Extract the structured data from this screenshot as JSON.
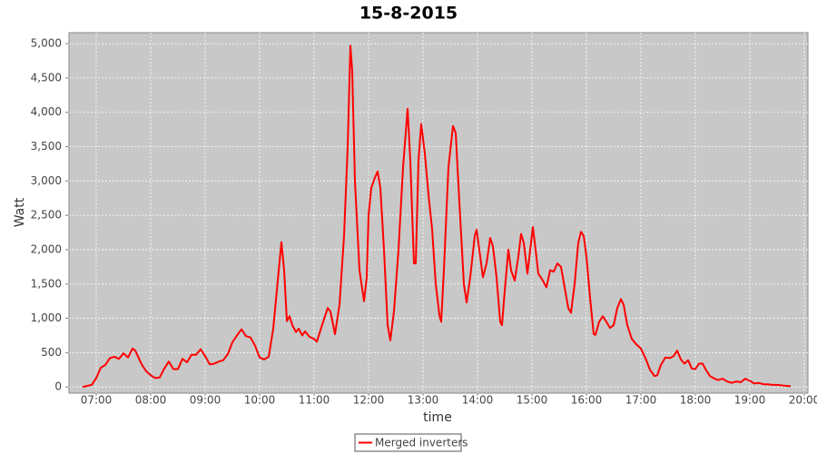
{
  "chart_data": {
    "type": "line",
    "title": "15-8-2015",
    "x_label": "time",
    "y_label": "Watt",
    "xlim": [
      "06:30",
      "20:04"
    ],
    "xticks": [
      "07:00",
      "08:00",
      "09:00",
      "10:00",
      "11:00",
      "12:00",
      "13:00",
      "14:00",
      "15:00",
      "16:00",
      "17:00",
      "18:00",
      "19:00",
      "20:00"
    ],
    "ylim": [
      -90,
      5160
    ],
    "yticks": [
      0,
      500,
      {
        "value": 1000,
        "label": "1,000"
      },
      {
        "value": 1500,
        "label": "1,500"
      },
      {
        "value": 2000,
        "label": "2,000"
      },
      {
        "value": 2500,
        "label": "2,500"
      },
      {
        "value": 3000,
        "label": "3,000"
      },
      {
        "value": 3500,
        "label": "3,500"
      },
      {
        "value": 4000,
        "label": "4,000"
      },
      {
        "value": 4500,
        "label": "4,500"
      },
      {
        "value": 5000,
        "label": "5,000"
      }
    ],
    "grid": true,
    "x": [
      "06:45",
      "06:55",
      "07:00",
      "07:05",
      "07:10",
      "07:15",
      "07:20",
      "07:25",
      "07:30",
      "07:35",
      "07:40",
      "07:43",
      "07:50",
      "07:55",
      "08:00",
      "08:05",
      "08:10",
      "08:15",
      "08:20",
      "08:25",
      "08:30",
      "08:35",
      "08:40",
      "08:45",
      "08:50",
      "08:55",
      "09:00",
      "09:05",
      "09:10",
      "09:15",
      "09:20",
      "09:25",
      "09:30",
      "09:35",
      "09:40",
      "09:45",
      "09:50",
      "09:55",
      "10:00",
      "10:05",
      "10:10",
      "10:15",
      "10:20",
      "10:24",
      "10:27",
      "10:30",
      "10:33",
      "10:36",
      "10:40",
      "10:43",
      "10:47",
      "10:50",
      "10:55",
      "11:00",
      "11:03",
      "11:10",
      "11:15",
      "11:18",
      "11:23",
      "11:28",
      "11:33",
      "11:37",
      "11:40",
      "11:42",
      "11:45",
      "11:50",
      "11:55",
      "11:58",
      "12:00",
      "12:03",
      "12:07",
      "12:10",
      "12:13",
      "12:17",
      "12:21",
      "12:24",
      "12:28",
      "12:33",
      "12:38",
      "12:43",
      "12:46",
      "12:50",
      "12:52",
      "12:55",
      "12:58",
      "13:02",
      "13:06",
      "13:10",
      "13:14",
      "13:18",
      "13:20",
      "13:23",
      "13:28",
      "13:33",
      "13:36",
      "13:40",
      "13:45",
      "13:48",
      "13:52",
      "13:57",
      "13:59",
      "14:03",
      "14:06",
      "14:10",
      "14:14",
      "14:17",
      "14:21",
      "14:25",
      "14:27",
      "14:30",
      "14:34",
      "14:37",
      "14:41",
      "14:45",
      "14:48",
      "14:51",
      "14:55",
      "14:59",
      "15:01",
      "15:04",
      "15:07",
      "15:12",
      "15:16",
      "15:20",
      "15:24",
      "15:28",
      "15:32",
      "15:36",
      "15:40",
      "15:43",
      "15:47",
      "15:51",
      "15:54",
      "15:57",
      "16:00",
      "16:04",
      "16:08",
      "16:10",
      "16:14",
      "16:18",
      "16:22",
      "16:26",
      "16:30",
      "16:34",
      "16:38",
      "16:41",
      "16:45",
      "16:50",
      "16:55",
      "17:00",
      "17:05",
      "17:10",
      "17:15",
      "17:18",
      "17:22",
      "17:27",
      "17:32",
      "17:36",
      "17:40",
      "17:44",
      "17:48",
      "17:52",
      "17:56",
      "18:00",
      "18:04",
      "18:08",
      "18:12",
      "18:16",
      "18:20",
      "18:25",
      "18:30",
      "18:35",
      "18:40",
      "18:45",
      "18:50",
      "18:55",
      "19:00",
      "19:05",
      "19:10",
      "19:15",
      "19:20",
      "19:25",
      "19:30",
      "19:38",
      "19:45"
    ],
    "series": [
      {
        "name": "Merged inverters",
        "color": "#ff0000",
        "values": [
          0,
          30,
          130,
          280,
          320,
          420,
          440,
          410,
          490,
          430,
          560,
          530,
          330,
          230,
          170,
          130,
          140,
          270,
          370,
          260,
          260,
          410,
          360,
          470,
          470,
          550,
          450,
          330,
          340,
          370,
          390,
          480,
          650,
          750,
          840,
          740,
          720,
          600,
          430,
          400,
          440,
          850,
          1550,
          2110,
          1700,
          960,
          1030,
          900,
          800,
          850,
          750,
          810,
          730,
          700,
          660,
          950,
          1150,
          1100,
          770,
          1200,
          2200,
          3500,
          4970,
          4600,
          3000,
          1700,
          1250,
          1600,
          2500,
          2900,
          3050,
          3140,
          2900,
          2000,
          900,
          680,
          1100,
          2000,
          3200,
          4050,
          3300,
          1800,
          1800,
          3300,
          3830,
          3400,
          2800,
          2300,
          1500,
          1050,
          950,
          1700,
          3200,
          3800,
          3700,
          2700,
          1500,
          1230,
          1600,
          2200,
          2290,
          1900,
          1600,
          1800,
          2170,
          2050,
          1600,
          950,
          900,
          1400,
          2000,
          1700,
          1550,
          1900,
          2230,
          2100,
          1650,
          2100,
          2330,
          2000,
          1650,
          1550,
          1450,
          1700,
          1680,
          1800,
          1750,
          1450,
          1150,
          1080,
          1500,
          2100,
          2260,
          2200,
          1900,
          1300,
          770,
          760,
          950,
          1030,
          950,
          860,
          900,
          1150,
          1280,
          1200,
          900,
          700,
          620,
          560,
          420,
          250,
          160,
          170,
          320,
          430,
          420,
          450,
          530,
          400,
          340,
          390,
          270,
          260,
          340,
          340,
          240,
          160,
          130,
          100,
          120,
          80,
          60,
          80,
          70,
          120,
          90,
          50,
          60,
          40,
          40,
          30,
          30,
          20,
          10
        ]
      }
    ]
  }
}
